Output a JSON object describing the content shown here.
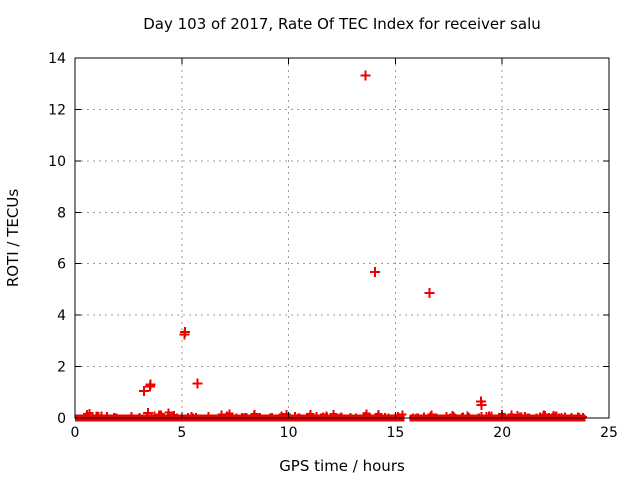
{
  "chart_data": {
    "type": "scatter",
    "title": "Day 103 of 2017, Rate Of TEC Index for receiver salu",
    "xlabel": "GPS time / hours",
    "ylabel": "ROTI / TECUs",
    "xlim": [
      0,
      25
    ],
    "ylim": [
      0,
      14
    ],
    "xticks": [
      0,
      5,
      10,
      15,
      20,
      25
    ],
    "yticks": [
      0,
      2,
      4,
      6,
      8,
      10,
      12,
      14
    ],
    "grid": true,
    "legend": "none",
    "marker": "plus",
    "series": [
      {
        "name": "ROTI",
        "color": "#ee0000",
        "outlier_points": [
          [
            3.23,
            1.05
          ],
          [
            3.42,
            0.19
          ],
          [
            3.5,
            1.22
          ],
          [
            3.54,
            1.3
          ],
          [
            5.12,
            3.24
          ],
          [
            5.16,
            3.34
          ],
          [
            5.74,
            1.35
          ],
          [
            13.6,
            13.32
          ],
          [
            14.04,
            5.68
          ],
          [
            16.59,
            4.87
          ],
          [
            19.01,
            0.64
          ],
          [
            19.03,
            0.51
          ]
        ],
        "baseline_band": {
          "description": "dense near-zero ROTI measurements along y=0",
          "segments": [
            [
              0.0,
              15.43
            ],
            [
              15.66,
              23.9
            ]
          ],
          "value_range": [
            0.0,
            0.2
          ],
          "noise_marker_count": 150,
          "noise_seed": 20170103
        }
      }
    ]
  },
  "colors": {
    "background": "#ffffff",
    "axis": "#000000",
    "grid": "#9e9e9e",
    "marker": "#ee0000",
    "text": "#000000"
  }
}
